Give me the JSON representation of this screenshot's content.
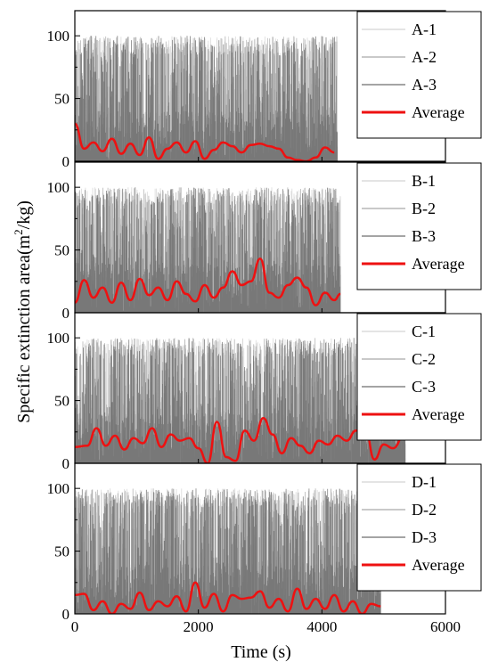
{
  "chart_data": {
    "type": "line",
    "ylabel": "Specific extinction area(m²/kg)",
    "ylabel_parts": {
      "prefix": "Specific extinction area(m",
      "superscript": "2",
      "suffix": "/kg)"
    },
    "xlabel": "Time (s)",
    "xlim": [
      0,
      6000
    ],
    "xticks": [
      0,
      2000,
      4000,
      6000
    ],
    "xtick_labels": [
      "0",
      "2000",
      "4000",
      "6000"
    ],
    "ylim": [
      0,
      120
    ],
    "yticks": [
      0,
      50,
      100
    ],
    "ytick_labels": [
      "0",
      "50",
      "100"
    ],
    "legend_position": "top-right",
    "colors": {
      "run1": "#d3d3d3",
      "run2": "#a9a9a9",
      "run3": "#6e6e6e",
      "average": "#ee1111"
    },
    "panels": [
      {
        "id": "A",
        "legend": [
          "A-1",
          "A-2",
          "A-3",
          "Average"
        ],
        "note": "raw runs shown as dense vertical spikes between 0 and ~100",
        "series": [
          {
            "name": "A-1",
            "x_range": [
              0,
              4250
            ],
            "y_range": [
              0,
              100
            ]
          },
          {
            "name": "A-2",
            "x_range": [
              0,
              4250
            ],
            "y_range": [
              0,
              100
            ]
          },
          {
            "name": "A-3",
            "x_range": [
              0,
              4250
            ],
            "y_range": [
              0,
              100
            ]
          },
          {
            "name": "Average",
            "x": [
              0,
              150,
              300,
              450,
              600,
              750,
              900,
              1050,
              1200,
              1350,
              1500,
              1650,
              1800,
              1950,
              2100,
              2250,
              2400,
              2550,
              2700,
              2850,
              3000,
              3150,
              3300,
              3450,
              3600,
              3750,
              3900,
              4050,
              4200
            ],
            "y": [
              30,
              10,
              15,
              8,
              18,
              6,
              14,
              5,
              19,
              2,
              10,
              15,
              7,
              16,
              2,
              9,
              15,
              12,
              7,
              13,
              14,
              12,
              10,
              3,
              1,
              0,
              3,
              11,
              7
            ]
          }
        ]
      },
      {
        "id": "B",
        "legend": [
          "B-1",
          "B-2",
          "B-3",
          "Average"
        ],
        "series": [
          {
            "name": "B-1",
            "x_range": [
              0,
              4300
            ],
            "y_range": [
              0,
              100
            ]
          },
          {
            "name": "B-2",
            "x_range": [
              0,
              4300
            ],
            "y_range": [
              0,
              100
            ]
          },
          {
            "name": "B-3",
            "x_range": [
              0,
              4300
            ],
            "y_range": [
              0,
              100
            ]
          },
          {
            "name": "Average",
            "x": [
              0,
              150,
              300,
              450,
              600,
              750,
              900,
              1050,
              1200,
              1350,
              1500,
              1650,
              1800,
              1950,
              2100,
              2250,
              2400,
              2550,
              2700,
              2850,
              3000,
              3150,
              3300,
              3450,
              3600,
              3750,
              3900,
              4050,
              4200,
              4300
            ],
            "y": [
              8,
              26,
              12,
              20,
              8,
              24,
              10,
              27,
              14,
              20,
              10,
              25,
              15,
              9,
              22,
              12,
              20,
              33,
              22,
              25,
              43,
              16,
              12,
              22,
              28,
              20,
              6,
              16,
              10,
              15
            ]
          }
        ]
      },
      {
        "id": "C",
        "legend": [
          "C-1",
          "C-2",
          "C-3",
          "Average"
        ],
        "series": [
          {
            "name": "C-1",
            "x_range": [
              0,
              5350
            ],
            "y_range": [
              0,
              100
            ]
          },
          {
            "name": "C-2",
            "x_range": [
              0,
              5350
            ],
            "y_range": [
              0,
              100
            ]
          },
          {
            "name": "C-3",
            "x_range": [
              0,
              5350
            ],
            "y_range": [
              0,
              100
            ]
          },
          {
            "name": "Average",
            "x": [
              0,
              200,
              350,
              500,
              650,
              800,
              950,
              1100,
              1250,
              1400,
              1550,
              1700,
              1850,
              2000,
              2150,
              2300,
              2450,
              2600,
              2750,
              2900,
              3050,
              3200,
              3350,
              3500,
              3650,
              3800,
              3950,
              4100,
              4250,
              4400,
              4550,
              4700,
              4850,
              5000,
              5150,
              5350
            ],
            "y": [
              13,
              14,
              28,
              14,
              22,
              11,
              20,
              16,
              28,
              13,
              23,
              18,
              20,
              12,
              0,
              33,
              5,
              2,
              26,
              18,
              36,
              23,
              8,
              20,
              14,
              8,
              18,
              15,
              22,
              18,
              26,
              28,
              3,
              15,
              12,
              24
            ]
          }
        ]
      },
      {
        "id": "D",
        "legend": [
          "D-1",
          "D-2",
          "D-3",
          "Average"
        ],
        "series": [
          {
            "name": "D-1",
            "x_range": [
              0,
              4950
            ],
            "y_range": [
              0,
              100
            ]
          },
          {
            "name": "D-2",
            "x_range": [
              0,
              4950
            ],
            "y_range": [
              0,
              100
            ]
          },
          {
            "name": "D-3",
            "x_range": [
              0,
              4950
            ],
            "y_range": [
              0,
              100
            ]
          },
          {
            "name": "Average",
            "x": [
              0,
              150,
              300,
              450,
              600,
              750,
              900,
              1050,
              1200,
              1350,
              1500,
              1650,
              1800,
              1950,
              2100,
              2250,
              2400,
              2550,
              2700,
              2850,
              3000,
              3150,
              3300,
              3450,
              3600,
              3750,
              3900,
              4050,
              4200,
              4350,
              4500,
              4650,
              4800,
              4950
            ],
            "y": [
              15,
              16,
              3,
              10,
              0,
              8,
              4,
              17,
              3,
              10,
              6,
              14,
              2,
              25,
              5,
              16,
              2,
              15,
              12,
              13,
              18,
              5,
              12,
              2,
              20,
              4,
              12,
              4,
              15,
              2,
              10,
              0,
              8,
              6
            ]
          }
        ]
      }
    ]
  }
}
